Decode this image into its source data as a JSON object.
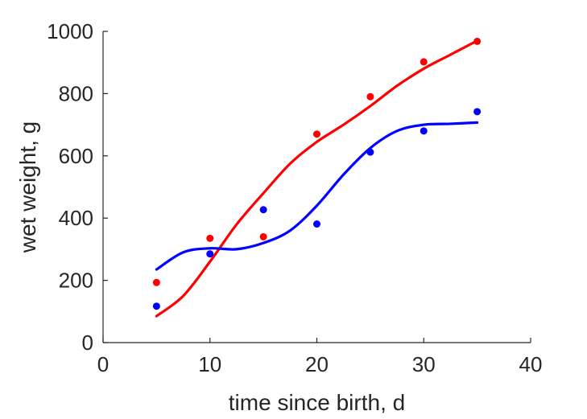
{
  "chart_data": {
    "type": "scatter",
    "title": "",
    "xlabel": "time since birth, d",
    "ylabel": "wet weight, g",
    "xlim": [
      0,
      40
    ],
    "ylim": [
      0,
      1000
    ],
    "xticks": [
      0,
      10,
      20,
      30,
      40
    ],
    "yticks": [
      0,
      200,
      400,
      600,
      800,
      1000
    ],
    "grid": false,
    "legend": "none",
    "series": [
      {
        "color": "#ff0000",
        "points": {
          "x": [
            5,
            10,
            15,
            20,
            25,
            30,
            35
          ],
          "y": [
            193,
            335,
            340,
            670,
            790,
            902,
            968
          ]
        },
        "fit": {
          "x": [
            5,
            7.5,
            10,
            12.5,
            15,
            17.5,
            20,
            22.5,
            25,
            27.5,
            30,
            32.5,
            35
          ],
          "y": [
            85,
            150,
            260,
            380,
            480,
            575,
            645,
            700,
            760,
            825,
            880,
            925,
            970
          ]
        }
      },
      {
        "color": "#0000ff",
        "points": {
          "x": [
            5,
            10,
            15,
            20,
            25,
            30,
            35
          ],
          "y": [
            117,
            285,
            427,
            381,
            612,
            680,
            742
          ]
        },
        "fit": {
          "x": [
            5,
            7.5,
            10,
            12.5,
            15,
            17.5,
            20,
            22.5,
            25,
            27.5,
            30,
            32.5,
            35
          ],
          "y": [
            235,
            290,
            303,
            300,
            320,
            360,
            440,
            540,
            625,
            680,
            700,
            703,
            707
          ]
        }
      }
    ]
  }
}
